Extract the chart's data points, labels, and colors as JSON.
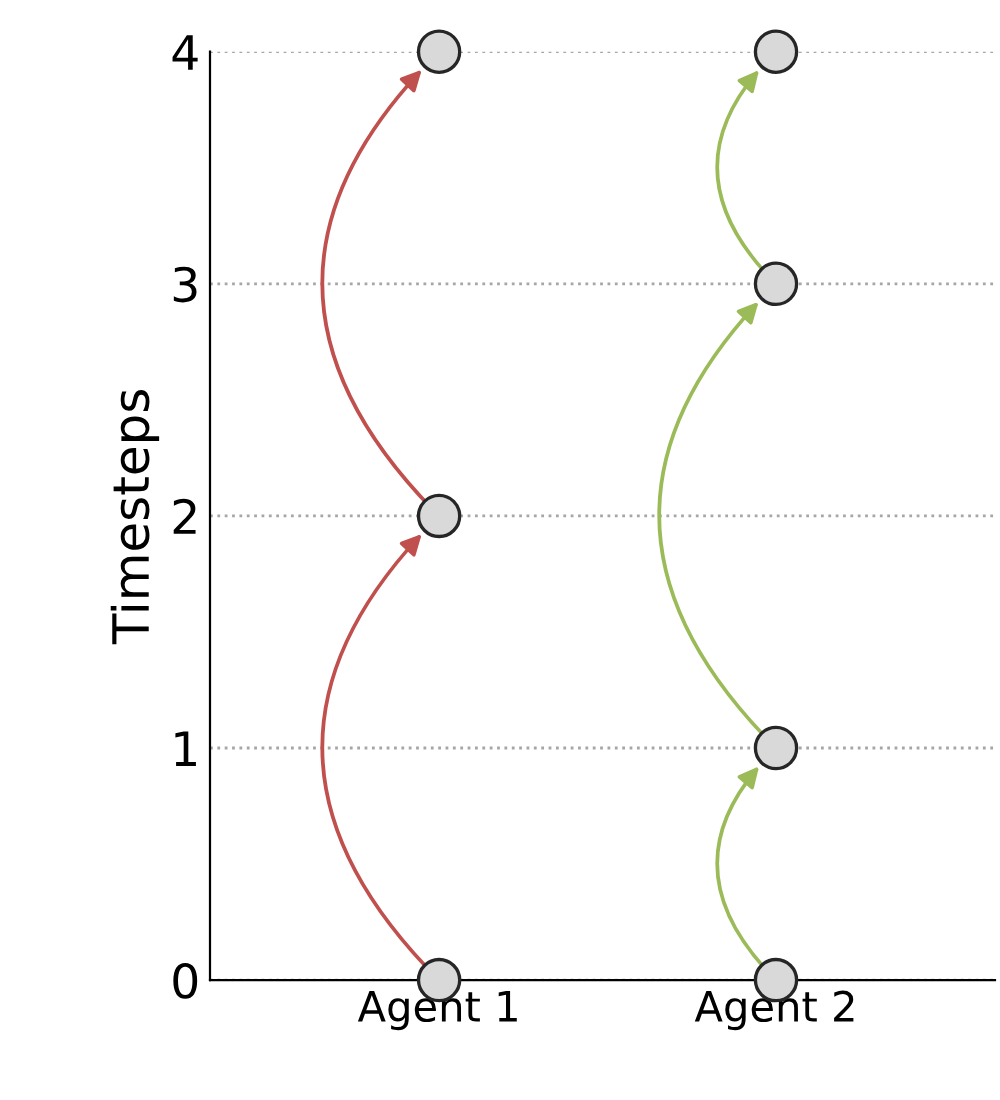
{
  "chart_data": {
    "type": "scatter",
    "categories": [
      "Agent 1",
      "Agent 2"
    ],
    "ylabel": "Timesteps",
    "series": [
      {
        "x": [
          "Agent 1",
          "Agent 1",
          "Agent 1"
        ],
        "values": [
          0,
          2,
          4
        ],
        "color": "#d9d9d9"
      },
      {
        "x": [
          "Agent 2",
          "Agent 2",
          "Agent 2",
          "Agent 2"
        ],
        "values": [
          0,
          1,
          3,
          4
        ],
        "color": "#d9d9d9"
      }
    ],
    "ylim": [
      0,
      4
    ],
    "yticks": [
      0,
      1,
      2,
      3,
      4
    ],
    "grid": "y",
    "marker": "circle",
    "legend": false
  }
}
